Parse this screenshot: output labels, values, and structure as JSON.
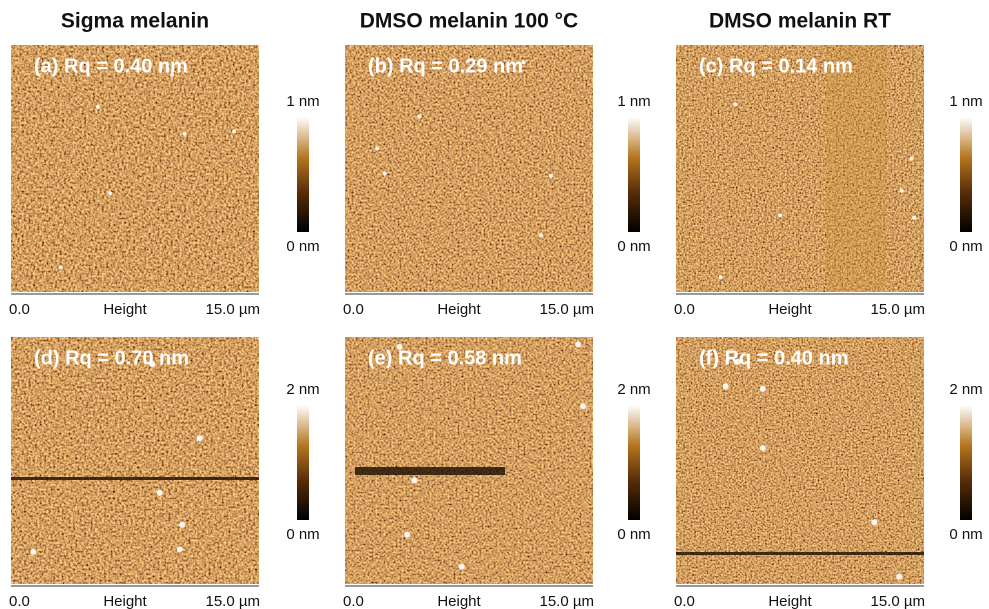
{
  "columns": [
    "Sigma melanin",
    "DMSO melanin 100 °C",
    "DMSO melanin RT"
  ],
  "panels": [
    {
      "label": "(a) Rq = 0.40 nm",
      "scale_max": "1 nm",
      "scale_min": "0 nm",
      "axis_start": "0.0",
      "axis_title": "Height",
      "axis_end": "15.0 µm"
    },
    {
      "label": "(b) Rq = 0.29 nm",
      "scale_max": "1 nm",
      "scale_min": "0 nm",
      "axis_start": "0.0",
      "axis_title": "Height",
      "axis_end": "15.0 µm"
    },
    {
      "label": "(c) Rq = 0.14 nm",
      "scale_max": "1 nm",
      "scale_min": "0 nm",
      "axis_start": "0.0",
      "axis_title": "Height",
      "axis_end": "15.0 µm"
    },
    {
      "label": "(d) Rq = 0.70 nm",
      "scale_max": "2 nm",
      "scale_min": "0 nm",
      "axis_start": "0.0",
      "axis_title": "Height",
      "axis_end": "15.0 µm"
    },
    {
      "label": "(e) Rq = 0.58 nm",
      "scale_max": "2 nm",
      "scale_min": "0 nm",
      "axis_start": "0.0",
      "axis_title": "Height",
      "axis_end": "15.0 µm"
    },
    {
      "label": "(f) Rq = 0.40 nm",
      "scale_max": "2 nm",
      "scale_min": "0 nm",
      "axis_start": "0.0",
      "axis_title": "Height",
      "axis_end": "15.0 µm"
    }
  ]
}
